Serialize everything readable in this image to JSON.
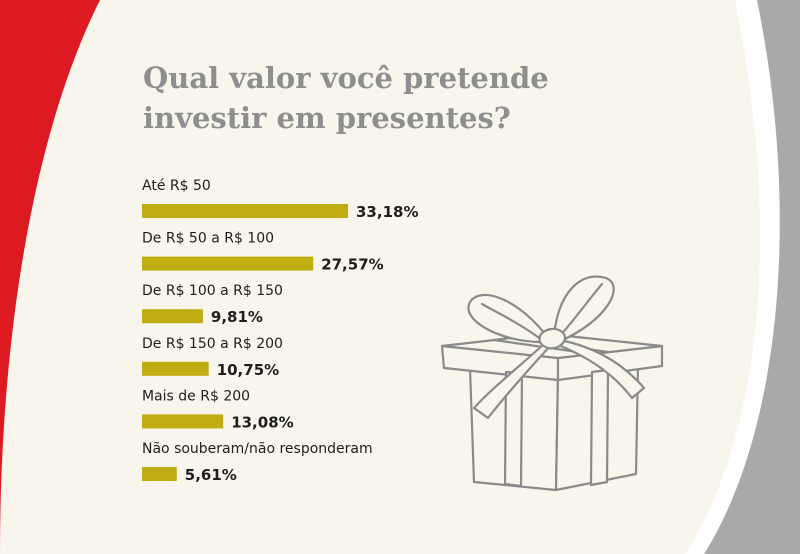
{
  "colors": {
    "background": "#f8f6ec",
    "accent_red": "#dd1a22",
    "accent_gray": "#a9a9a9",
    "title": "#8e8e8e",
    "bar": "#c0ad12",
    "text": "#1e1e1e"
  },
  "icons": [
    "gift-box-icon"
  ],
  "chart_data": {
    "type": "bar",
    "orientation": "horizontal",
    "title": "Qual valor você pretende investir em presentes?",
    "categories": [
      "Até R$ 50",
      "De R$ 50 a R$ 100",
      "De R$ 100 a R$ 150",
      "De R$ 150 a R$ 200",
      "Mais de R$ 200",
      "Não souberam/não responderam"
    ],
    "values": [
      33.18,
      27.57,
      9.81,
      10.75,
      13.08,
      5.61
    ],
    "value_labels": [
      "33,18%",
      "27,57%",
      "9,81%",
      "10,75%",
      "13,08%",
      "5,61%"
    ],
    "unit": "%",
    "xlim": [
      0,
      33.18
    ],
    "grid": false,
    "legend": "none"
  }
}
